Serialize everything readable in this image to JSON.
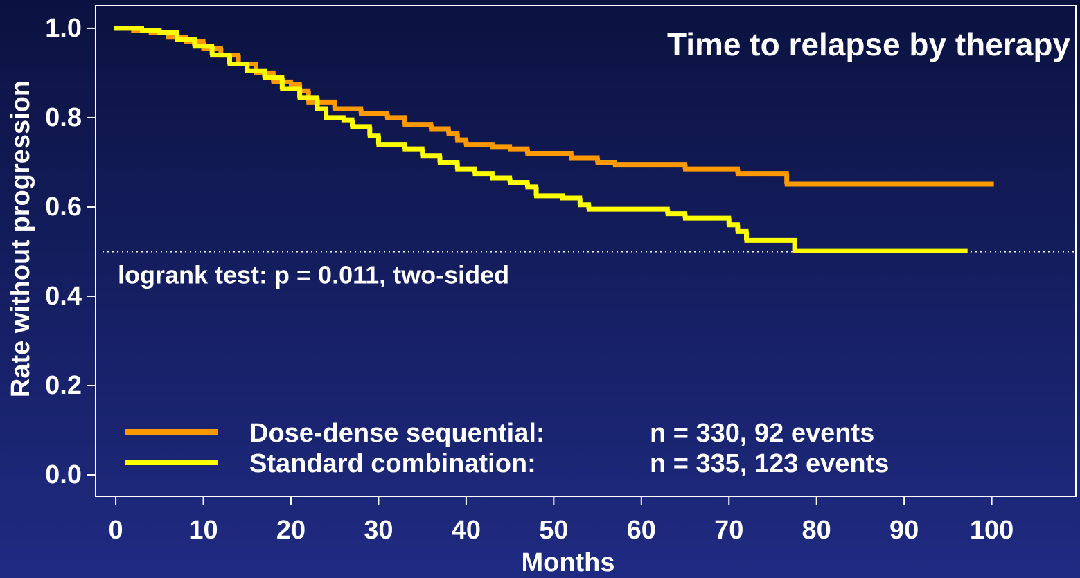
{
  "chart_data": {
    "type": "step",
    "xlabel": "Months",
    "ylabel": "Rate without progression",
    "annotations": [
      "Time to relapse by therapy",
      "logrank test: p = 0.011, two-sided"
    ],
    "reference_line": 0.5,
    "xlim": [
      -2.3,
      109.6
    ],
    "ylim": [
      -0.048,
      1.051
    ],
    "xticks": [
      0,
      10,
      20,
      30,
      40,
      50,
      60,
      70,
      80,
      90,
      100
    ],
    "yticks": [
      {
        "value": 0,
        "label": "0.0"
      },
      0.2,
      0.4,
      0.6,
      0.8,
      {
        "value": 1,
        "label": "1.0"
      }
    ],
    "series": [
      {
        "name": "Dose-dense sequential:",
        "note": "n = 330, 92 events",
        "color": "#ff9900",
        "x": [
          0,
          2,
          4,
          6,
          8,
          10,
          12,
          14,
          16,
          18,
          20,
          21,
          22,
          25,
          28,
          31,
          33,
          36,
          38,
          39,
          40,
          43,
          45,
          47,
          52,
          55,
          57,
          65,
          71,
          76.6,
          100
        ],
        "values": [
          1.0,
          0.995,
          0.99,
          0.98,
          0.97,
          0.955,
          0.94,
          0.92,
          0.9,
          0.88,
          0.875,
          0.86,
          0.835,
          0.82,
          0.81,
          0.8,
          0.785,
          0.775,
          0.765,
          0.75,
          0.74,
          0.735,
          0.73,
          0.72,
          0.71,
          0.7,
          0.695,
          0.685,
          0.675,
          0.651,
          0.651
        ]
      },
      {
        "name": "Standard combination:",
        "note": "n = 335, 123 events",
        "color": "#ffff00",
        "x": [
          0,
          3,
          5,
          7,
          9,
          11,
          13,
          15,
          17,
          19,
          21,
          23,
          24,
          26,
          27,
          29,
          30,
          33,
          35,
          37,
          39,
          41,
          43,
          45,
          47,
          48,
          51,
          53,
          54,
          63,
          65,
          70,
          71,
          72,
          77.5,
          97
        ],
        "values": [
          1.0,
          0.995,
          0.99,
          0.975,
          0.96,
          0.94,
          0.92,
          0.905,
          0.89,
          0.865,
          0.845,
          0.82,
          0.8,
          0.795,
          0.78,
          0.76,
          0.74,
          0.73,
          0.715,
          0.7,
          0.685,
          0.675,
          0.665,
          0.655,
          0.645,
          0.625,
          0.62,
          0.605,
          0.595,
          0.585,
          0.575,
          0.56,
          0.545,
          0.525,
          0.502,
          0.502
        ]
      }
    ]
  }
}
